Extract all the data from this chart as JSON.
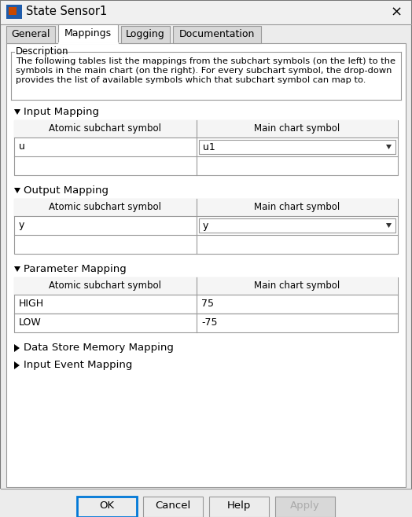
{
  "title": "State Sensor1",
  "tabs": [
    "General",
    "Mappings",
    "Logging",
    "Documentation"
  ],
  "active_tab": "Mappings",
  "description_text_line1": "The following tables list the mappings from the subchart symbols (on the left) to the",
  "description_text_line2": "symbols in the main chart (on the right). For every subchart symbol, the drop-down",
  "description_text_line3": "provides the list of available symbols which that subchart symbol can map to.",
  "sections": [
    {
      "name": "Input Mapping",
      "col1_header": "Atomic subchart symbol",
      "col2_header": "Main chart symbol",
      "rows": [
        {
          "col1": "u",
          "col2": "u1",
          "col2_dropdown": true
        },
        {
          "col1": "",
          "col2": "",
          "col2_dropdown": false
        }
      ]
    },
    {
      "name": "Output Mapping",
      "col1_header": "Atomic subchart symbol",
      "col2_header": "Main chart symbol",
      "rows": [
        {
          "col1": "y",
          "col2": "y",
          "col2_dropdown": true
        },
        {
          "col1": "",
          "col2": "",
          "col2_dropdown": false
        }
      ]
    },
    {
      "name": "Parameter Mapping",
      "col1_header": "Atomic subchart symbol",
      "col2_header": "Main chart symbol",
      "rows": [
        {
          "col1": "HIGH",
          "col2": "75",
          "col2_dropdown": false,
          "divider_below": true
        },
        {
          "col1": "LOW",
          "col2": "-75",
          "col2_dropdown": false
        }
      ]
    }
  ],
  "collapsed_sections": [
    "Data Store Memory Mapping",
    "Input Event Mapping"
  ],
  "buttons": [
    "OK",
    "Cancel",
    "Help",
    "Apply"
  ],
  "bg_color": "#ececec",
  "white": "#ffffff",
  "border_color": "#999999",
  "dark_border": "#777777",
  "text_color": "#000000",
  "table_header_color": "#f5f5f5",
  "ok_border_color": "#0078d7",
  "apply_text_color": "#aaaaaa",
  "tab_active_bg": "#ffffff",
  "tab_inactive_bg": "#d8d8d8",
  "title_bar_color": "#f0f0f0",
  "icon_blue": "#1e5baa",
  "icon_orange": "#c84800"
}
